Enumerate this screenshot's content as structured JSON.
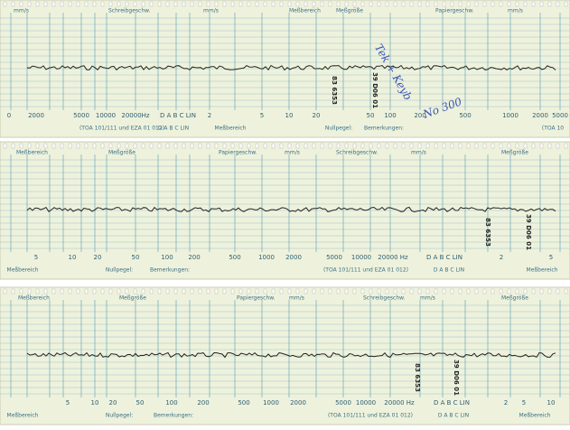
{
  "strips": [
    {
      "header": [
        "mm/s",
        "Schreibgeschw.",
        "mm/s",
        "Meßbereich",
        "Meßgröße",
        "Papiergeschw.",
        "mm/s"
      ],
      "scale": [
        "0",
        "2000",
        "5000",
        "10000",
        "20000Hz",
        "D A B C LIN",
        "2",
        "5",
        "10",
        "20",
        "50",
        "100",
        "200",
        "500",
        "1000",
        "2000",
        "5000"
      ],
      "footer": [
        "(TOA 101/111 und EZA 01 012)",
        "D A B C LIN",
        "Meßbereich",
        "Nullpegel:",
        "Bemerkungen:",
        "(TOA 10"
      ],
      "stamps": [
        "83 6353",
        "39 D06 01"
      ],
      "handwriting": [
        "Tek + Keyb",
        "No 300"
      ]
    },
    {
      "header": [
        "Meßbereich",
        "Meßgröße",
        "Papiergeschw.",
        "mm/s",
        "Schreibgeschw.",
        "mm/s",
        "Meßgröße"
      ],
      "scale": [
        "5",
        "10",
        "20",
        "50",
        "100",
        "200",
        "500",
        "1000",
        "2000",
        "5000",
        "10000",
        "20000 Hz",
        "D A B C LIN",
        "2",
        "5"
      ],
      "footer": [
        "Meßbereich",
        "Nullpegel:",
        "Bemerkungen:",
        "(TOA 101/111 und EZA 01 012)",
        "D A B C LIN",
        "Meßbereich"
      ],
      "stamps": [
        "83 6353",
        "39 D06 01"
      ],
      "handwriting": []
    },
    {
      "header": [
        "Meßbereich",
        "Meßgröße",
        "Papiergeschw.",
        "mm/s",
        "Schreibgeschw.",
        "mm/s",
        "Meßgröße"
      ],
      "scale": [
        "5",
        "10",
        "20",
        "50",
        "100",
        "200",
        "500",
        "1000",
        "2000",
        "5000",
        "10000",
        "20000 Hz",
        "D A B C LIN",
        "2",
        "5",
        "10"
      ],
      "footer": [
        "Meßbereich",
        "Nullpegel:",
        "Bemerkungen:",
        "(TOA 101/111 und EZA 01 012)",
        "D A B C LIN",
        "Meßbereich"
      ],
      "stamps": [
        "83 6353",
        "39 D06 01"
      ],
      "handwriting": []
    }
  ]
}
